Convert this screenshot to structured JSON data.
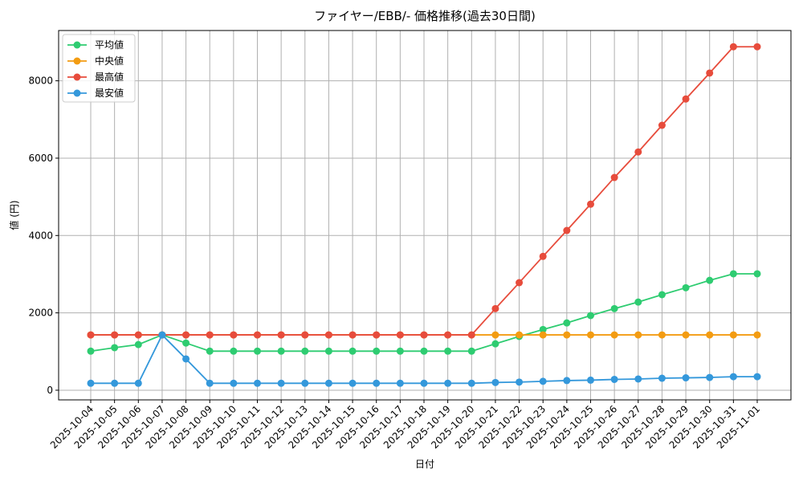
{
  "chart_data": {
    "type": "line",
    "title": "ファイヤー/EBB/- 価格推移(過去30日間)",
    "x_label": "日付",
    "y_label": "値 (円)",
    "categories": [
      "2025-10-04",
      "2025-10-05",
      "2025-10-06",
      "2025-10-07",
      "2025-10-08",
      "2025-10-09",
      "2025-10-10",
      "2025-10-11",
      "2025-10-12",
      "2025-10-13",
      "2025-10-14",
      "2025-10-15",
      "2025-10-16",
      "2025-10-17",
      "2025-10-18",
      "2025-10-19",
      "2025-10-20",
      "2025-10-21",
      "2025-10-22",
      "2025-10-23",
      "2025-10-24",
      "2025-10-25",
      "2025-10-26",
      "2025-10-27",
      "2025-10-28",
      "2025-10-29",
      "2025-10-30",
      "2025-10-31",
      "2025-11-01"
    ],
    "series": [
      {
        "name": "平均値",
        "color": "#2ecc71",
        "values": [
          1010,
          1100,
          1180,
          1430,
          1220,
          1010,
          1010,
          1010,
          1010,
          1010,
          1010,
          1010,
          1010,
          1010,
          1010,
          1010,
          1010,
          1200,
          1390,
          1570,
          1740,
          1930,
          2110,
          2280,
          2470,
          2650,
          2840,
          3010,
          3010
        ]
      },
      {
        "name": "中央値",
        "color": "#f39c12",
        "values": [
          1430,
          1430,
          1430,
          1430,
          1430,
          1430,
          1430,
          1430,
          1430,
          1430,
          1430,
          1430,
          1430,
          1430,
          1430,
          1430,
          1430,
          1430,
          1430,
          1430,
          1430,
          1430,
          1430,
          1430,
          1430,
          1430,
          1430,
          1430,
          1430
        ]
      },
      {
        "name": "最高値",
        "color": "#e74c3c",
        "values": [
          1430,
          1430,
          1430,
          1430,
          1430,
          1430,
          1430,
          1430,
          1430,
          1430,
          1430,
          1430,
          1430,
          1430,
          1430,
          1430,
          1430,
          2110,
          2780,
          3460,
          4130,
          4810,
          5500,
          6160,
          6850,
          7530,
          8200,
          8880,
          8880
        ]
      },
      {
        "name": "最安値",
        "color": "#3498db",
        "values": [
          180,
          180,
          180,
          1430,
          810,
          180,
          180,
          180,
          180,
          180,
          180,
          180,
          180,
          180,
          180,
          180,
          180,
          200,
          210,
          230,
          250,
          260,
          280,
          290,
          310,
          320,
          330,
          350,
          350
        ]
      }
    ],
    "ylim": [
      -250,
      9300
    ],
    "yticks": [
      0,
      2000,
      4000,
      6000,
      8000
    ],
    "grid": true,
    "legend": "upper-left"
  }
}
